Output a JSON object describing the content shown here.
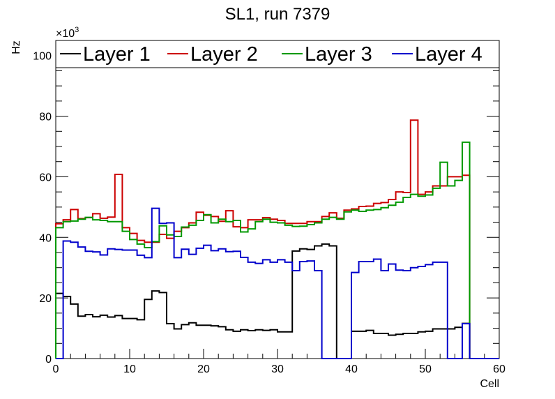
{
  "chart_data": {
    "type": "line",
    "style": "step-histogram",
    "title": "SL1, run 7379",
    "xlabel": "Cell",
    "ylabel": "Hz",
    "y_multiplier": "×10",
    "y_multiplier_exp": "3",
    "xlim": [
      0,
      60
    ],
    "ylim": [
      0,
      105000
    ],
    "x_ticks": [
      0,
      10,
      20,
      30,
      40,
      50,
      60
    ],
    "y_ticks": [
      0,
      20000,
      40000,
      60000,
      80000,
      100000
    ],
    "x_tick_labels": [
      "0",
      "10",
      "20",
      "30",
      "40",
      "50",
      "60"
    ],
    "y_tick_labels": [
      "0",
      "20",
      "40",
      "60",
      "80",
      "100"
    ],
    "bin_edges_start": 0,
    "bin_width": 1,
    "legend_position": "top",
    "series": [
      {
        "name": "Layer 1",
        "color": "#000000",
        "values": [
          21500,
          20500,
          18000,
          14000,
          14500,
          13800,
          14300,
          13700,
          14200,
          13200,
          13200,
          12800,
          19500,
          22300,
          21800,
          11500,
          9800,
          11200,
          11800,
          11000,
          11000,
          10800,
          10500,
          9500,
          9000,
          9500,
          9200,
          9500,
          9300,
          9500,
          8800,
          8800,
          35500,
          36200,
          36000,
          37200,
          37800,
          37200,
          0,
          0,
          9000,
          9000,
          9300,
          8300,
          8300,
          7700,
          8000,
          8300,
          8300,
          8800,
          9000,
          9800,
          9800,
          9800,
          10300,
          11600,
          0,
          0,
          0,
          0
        ]
      },
      {
        "name": "Layer 2",
        "color": "#cc0000",
        "values": [
          44500,
          45800,
          49200,
          46200,
          46500,
          47800,
          46300,
          46700,
          60800,
          43200,
          41300,
          39000,
          38400,
          38400,
          41000,
          39700,
          42000,
          43200,
          44800,
          48300,
          47300,
          46900,
          45300,
          48800,
          43500,
          43200,
          45800,
          45800,
          46500,
          46000,
          45600,
          44600,
          44600,
          44600,
          45200,
          45200,
          46900,
          48100,
          46300,
          49000,
          49400,
          50200,
          50300,
          51200,
          51500,
          52500,
          55000,
          54800,
          78700,
          54200,
          55000,
          57000,
          57000,
          60000,
          60000,
          60500,
          0,
          0,
          0,
          0
        ]
      },
      {
        "name": "Layer 3",
        "color": "#009900",
        "values": [
          43200,
          45200,
          45400,
          46000,
          46600,
          45800,
          45600,
          45200,
          45200,
          42000,
          39300,
          37800,
          36600,
          38600,
          43800,
          40800,
          40300,
          43400,
          44000,
          45600,
          47500,
          44800,
          46000,
          45200,
          45600,
          41800,
          42800,
          45200,
          46000,
          45000,
          44800,
          44000,
          43600,
          43700,
          44200,
          44800,
          46000,
          46600,
          46000,
          48400,
          49000,
          48600,
          49000,
          49200,
          49800,
          50600,
          51600,
          53200,
          54200,
          53600,
          54000,
          56200,
          64800,
          57000,
          58800,
          71400,
          0,
          0,
          0,
          0
        ]
      },
      {
        "name": "Layer 4",
        "color": "#0000cc",
        "values": [
          0,
          38800,
          38400,
          36800,
          35400,
          35200,
          34200,
          36200,
          36000,
          35800,
          35800,
          34100,
          33300,
          49600,
          44600,
          44800,
          33300,
          36100,
          34400,
          36400,
          37400,
          35600,
          36200,
          35300,
          35400,
          33400,
          31800,
          31400,
          32600,
          31800,
          32600,
          31800,
          29000,
          32000,
          32200,
          29000,
          0,
          0,
          0,
          0,
          28400,
          32000,
          32000,
          32800,
          29000,
          31200,
          29200,
          29000,
          30000,
          30400,
          31000,
          31800,
          31800,
          0,
          0,
          11500,
          0,
          0,
          0,
          0
        ]
      }
    ]
  }
}
